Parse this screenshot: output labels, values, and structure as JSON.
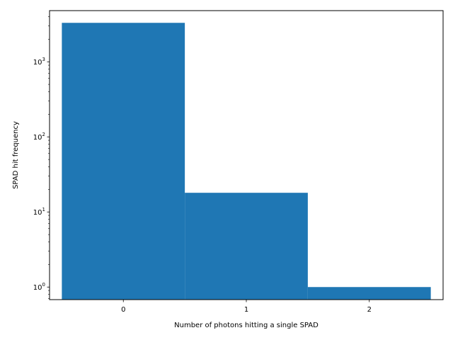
{
  "chart_data": {
    "type": "bar",
    "title": "",
    "xlabel": "Number of photons hitting a single SPAD",
    "ylabel": "SPAD hit frequency",
    "yscale": "log",
    "ylim": [
      0.68,
      4800
    ],
    "xlim": [
      -0.6,
      2.6
    ],
    "bar_width": 1.0,
    "categories": [
      "0",
      "1",
      "2"
    ],
    "x": [
      0,
      1,
      2
    ],
    "values": [
      3300,
      18,
      1
    ],
    "x_ticks": [
      {
        "value": 0,
        "label": "0"
      },
      {
        "value": 1,
        "label": "1"
      },
      {
        "value": 2,
        "label": "2"
      }
    ],
    "y_ticks": [
      {
        "value": 1,
        "base": "10",
        "exp": "0"
      },
      {
        "value": 10,
        "base": "10",
        "exp": "1"
      },
      {
        "value": 100,
        "base": "10",
        "exp": "2"
      },
      {
        "value": 1000,
        "base": "10",
        "exp": "3"
      }
    ],
    "bar_color": "#1f77b4",
    "grid": false,
    "legend": "none"
  }
}
